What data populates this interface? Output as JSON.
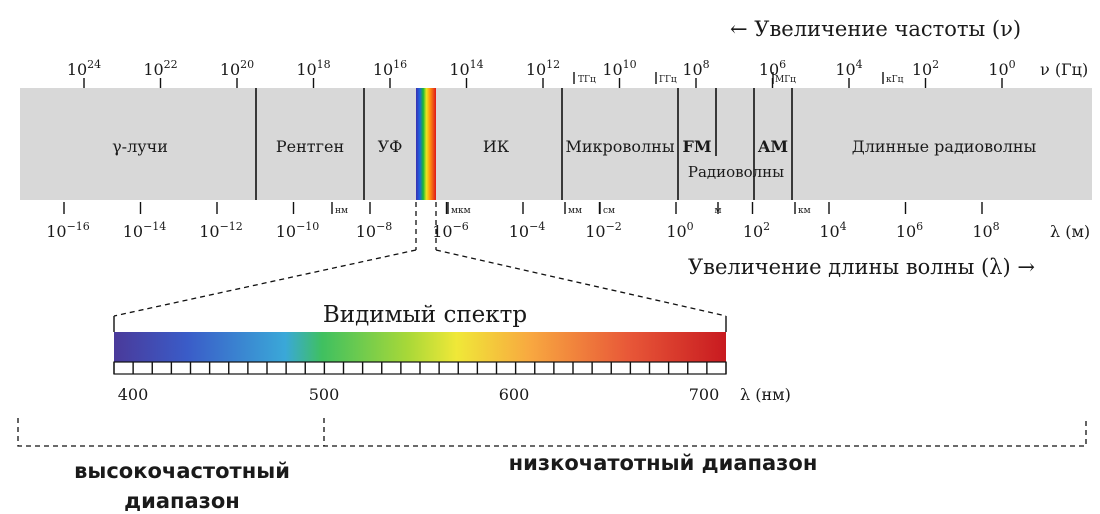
{
  "colors": {
    "band": "#d8d8d8",
    "ink": "#111111"
  },
  "header": {
    "frequency_arrow_label": "← Увеличение частоты (ν)",
    "frequency_unit": "ν (Гц)",
    "wavelength_arrow_label": "Увеличение длины волны (λ) →",
    "wavelength_unit": "λ (м)"
  },
  "frequency_ticks": [
    {
      "base": "10",
      "exp": "24"
    },
    {
      "base": "10",
      "exp": "22"
    },
    {
      "base": "10",
      "exp": "20"
    },
    {
      "base": "10",
      "exp": "18"
    },
    {
      "base": "10",
      "exp": "16"
    },
    {
      "base": "10",
      "exp": "14"
    },
    {
      "base": "10",
      "exp": "12"
    },
    {
      "base": "10",
      "exp": "10"
    },
    {
      "base": "10",
      "exp": "8"
    },
    {
      "base": "10",
      "exp": "6"
    },
    {
      "base": "10",
      "exp": "4"
    },
    {
      "base": "10",
      "exp": "2"
    },
    {
      "base": "10",
      "exp": "0"
    }
  ],
  "frequency_unit_marks": [
    "ТГц",
    "ГГц",
    "МГц",
    "кГц"
  ],
  "wavelength_ticks": [
    {
      "base": "10",
      "exp": "−16"
    },
    {
      "base": "10",
      "exp": "−14"
    },
    {
      "base": "10",
      "exp": "−12"
    },
    {
      "base": "10",
      "exp": "−10"
    },
    {
      "base": "10",
      "exp": "−8"
    },
    {
      "base": "10",
      "exp": "−6"
    },
    {
      "base": "10",
      "exp": "−4"
    },
    {
      "base": "10",
      "exp": "−2"
    },
    {
      "base": "10",
      "exp": "0"
    },
    {
      "base": "10",
      "exp": "2"
    },
    {
      "base": "10",
      "exp": "4"
    },
    {
      "base": "10",
      "exp": "6"
    },
    {
      "base": "10",
      "exp": "8"
    }
  ],
  "wavelength_unit_marks": [
    "нм",
    "мкм",
    "мм",
    "см",
    "м",
    "км"
  ],
  "bands": {
    "gamma": "γ-лучи",
    "xray": "Рентген",
    "uv": "УФ",
    "ir": "ИК",
    "microwave": "Микроволны",
    "fm": "FM",
    "am": "AM",
    "radio": "Радиоволны",
    "long_radio": "Длинные радиоволны"
  },
  "visible": {
    "title": "Видимый спектр",
    "unit": "λ (нм)",
    "ticks": [
      "400",
      "500",
      "600",
      "700"
    ]
  },
  "ranges": {
    "high": [
      "высокочастотный",
      "диапазон"
    ],
    "low": "низкочатотный диапазон"
  }
}
